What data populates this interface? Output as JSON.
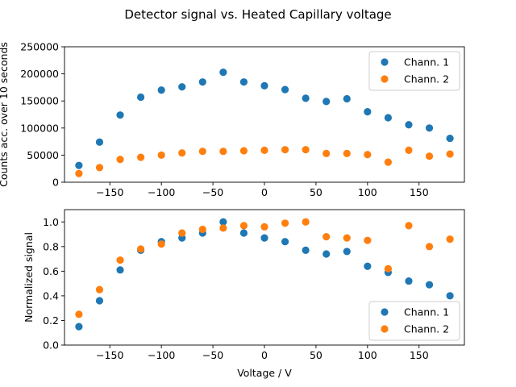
{
  "suptitle": "Detector signal vs. Heated Capillary voltage",
  "chart_data": [
    {
      "type": "scatter",
      "ylabel": "Counts acc. over 10 seconds",
      "xlabel": "",
      "xlim": [
        -194,
        194
      ],
      "ylim": [
        0,
        250000
      ],
      "xticks": [
        -150,
        -100,
        -50,
        0,
        50,
        100,
        150
      ],
      "xtick_labels": [
        "−150",
        "−100",
        "−50",
        "0",
        "50",
        "100",
        "150"
      ],
      "yticks": [
        0,
        50000,
        100000,
        150000,
        200000,
        250000
      ],
      "ytick_labels": [
        "0",
        "50000",
        "100000",
        "150000",
        "200000",
        "250000"
      ],
      "legend": "upper-right",
      "x": [
        -180,
        -160,
        -140,
        -120,
        -100,
        -80,
        -60,
        -40,
        -20,
        0,
        20,
        40,
        60,
        80,
        100,
        120,
        140,
        160,
        180
      ],
      "series": [
        {
          "name": "Chann. 1",
          "color": "#1f77b4",
          "values": [
            31000,
            74000,
            124000,
            157000,
            170000,
            176000,
            185000,
            203000,
            185000,
            178000,
            171000,
            155000,
            149000,
            154000,
            130000,
            119000,
            106000,
            100000,
            81000
          ]
        },
        {
          "name": "Chann. 2",
          "color": "#ff7f0e",
          "values": [
            16000,
            27000,
            42000,
            46000,
            50000,
            54000,
            57000,
            57000,
            58000,
            59000,
            60000,
            60000,
            53000,
            53000,
            51000,
            37000,
            59000,
            48000,
            52000
          ]
        }
      ]
    },
    {
      "type": "scatter",
      "ylabel": "Normalized signal",
      "xlabel": "Voltage / V",
      "xlim": [
        -194,
        194
      ],
      "ylim": [
        0,
        1.1
      ],
      "xticks": [
        -150,
        -100,
        -50,
        0,
        50,
        100,
        150
      ],
      "xtick_labels": [
        "−150",
        "−100",
        "−50",
        "0",
        "50",
        "100",
        "150"
      ],
      "yticks": [
        0,
        0.2,
        0.4,
        0.6,
        0.8,
        1.0
      ],
      "ytick_labels": [
        "0.0",
        "0.2",
        "0.4",
        "0.6",
        "0.8",
        "1.0"
      ],
      "legend": "lower-right",
      "x": [
        -180,
        -160,
        -140,
        -120,
        -100,
        -80,
        -60,
        -40,
        -20,
        0,
        20,
        40,
        60,
        80,
        100,
        120,
        140,
        160,
        180
      ],
      "series": [
        {
          "name": "Chann. 1",
          "color": "#1f77b4",
          "values": [
            0.15,
            0.36,
            0.61,
            0.77,
            0.84,
            0.87,
            0.91,
            1.0,
            0.91,
            0.87,
            0.84,
            0.77,
            0.74,
            0.76,
            0.64,
            0.59,
            0.52,
            0.49,
            0.4
          ]
        },
        {
          "name": "Chann. 2",
          "color": "#ff7f0e",
          "values": [
            0.25,
            0.45,
            0.69,
            0.78,
            0.82,
            0.91,
            0.94,
            0.95,
            0.97,
            0.96,
            0.99,
            1.0,
            0.88,
            0.87,
            0.85,
            0.62,
            0.97,
            0.8,
            0.86
          ]
        }
      ]
    }
  ]
}
